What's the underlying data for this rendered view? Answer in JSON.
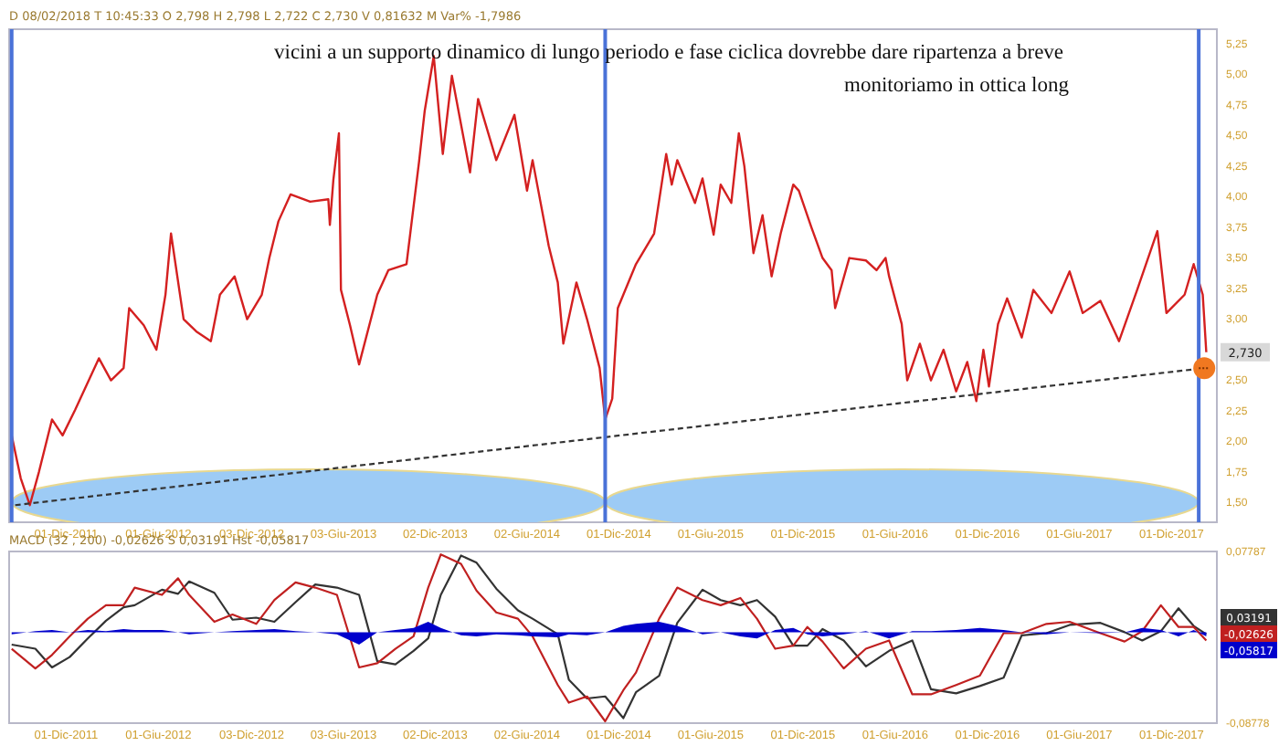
{
  "chart_data": [
    {
      "type": "line",
      "xlim": [
        "2011-08-10",
        "2018-03-01"
      ],
      "ylim": [
        1.34,
        5.37
      ],
      "xticks": [
        {
          "value": "2011-12-01",
          "label": "01-Dic-2011"
        },
        {
          "value": "2012-06-01",
          "label": "01-Giu-2012"
        },
        {
          "value": "2012-12-03",
          "label": "03-Dic-2012"
        },
        {
          "value": "2013-06-03",
          "label": "03-Giu-2013"
        },
        {
          "value": "2013-12-02",
          "label": "02-Dic-2013"
        },
        {
          "value": "2014-06-02",
          "label": "02-Giu-2014"
        },
        {
          "value": "2014-12-01",
          "label": "01-Dic-2014"
        },
        {
          "value": "2015-06-01",
          "label": "01-Giu-2015"
        },
        {
          "value": "2015-12-01",
          "label": "01-Dic-2015"
        },
        {
          "value": "2016-06-01",
          "label": "01-Giu-2016"
        },
        {
          "value": "2016-12-01",
          "label": "01-Dic-2016"
        },
        {
          "value": "2017-06-01",
          "label": "01-Giu-2017"
        },
        {
          "value": "2017-12-01",
          "label": "01-Dic-2017"
        }
      ],
      "yticks": [
        {
          "value": 1.5,
          "label": "1,50"
        },
        {
          "value": 1.75,
          "label": "1,75"
        },
        {
          "value": 2,
          "label": "2,00"
        },
        {
          "value": 2.25,
          "label": "2,25"
        },
        {
          "value": 2.5,
          "label": "2,50"
        },
        {
          "value": 3,
          "label": "3,00"
        },
        {
          "value": 3.25,
          "label": "3,25"
        },
        {
          "value": 3.5,
          "label": "3,50"
        },
        {
          "value": 3.75,
          "label": "3,75"
        },
        {
          "value": 4,
          "label": "4,00"
        },
        {
          "value": 4.25,
          "label": "4,25"
        },
        {
          "value": 4.5,
          "label": "4,50"
        },
        {
          "value": 4.75,
          "label": "4,75"
        },
        {
          "value": 5,
          "label": "5,00"
        },
        {
          "value": 5.25,
          "label": "5,25"
        }
      ],
      "series": [
        {
          "color": "#d42020",
          "line_style": "solid",
          "x": [
            "2011-08-15",
            "2011-09-02",
            "2011-09-20",
            "2011-10-08",
            "2011-11-03",
            "2011-11-24",
            "2011-12-19",
            "2012-02-04",
            "2012-02-28",
            "2012-03-24",
            "2012-04-04",
            "2012-05-03",
            "2012-05-28",
            "2012-06-15",
            "2012-06-26",
            "2012-07-21",
            "2012-08-15",
            "2012-09-13",
            "2012-10-01",
            "2012-10-30",
            "2012-11-24",
            "2012-12-23",
            "2013-01-07",
            "2013-01-25",
            "2013-02-18",
            "2013-03-29",
            "2013-05-04",
            "2013-05-07",
            "2013-05-14",
            "2013-05-25",
            "2013-05-29",
            "2013-06-16",
            "2013-07-04",
            "2013-08-09",
            "2013-08-31",
            "2013-10-06",
            "2013-10-31",
            "2013-11-11",
            "2013-11-29",
            "2013-12-17",
            "2014-01-04",
            "2014-02-09",
            "2014-02-25",
            "2014-04-02",
            "2014-05-08",
            "2014-06-02",
            "2014-06-13",
            "2014-07-15",
            "2014-08-02",
            "2014-08-13",
            "2014-09-08",
            "2014-09-29",
            "2014-10-24",
            "2014-11-04",
            "2014-11-18",
            "2014-11-29",
            "2014-12-10",
            "2015-01-04",
            "2015-02-09",
            "2015-03-05",
            "2015-03-16",
            "2015-03-27",
            "2015-05-01",
            "2015-05-16",
            "2015-06-07",
            "2015-06-21",
            "2015-07-12",
            "2015-07-27",
            "2015-08-07",
            "2015-08-25",
            "2015-09-12",
            "2015-09-30",
            "2015-10-18",
            "2015-11-12",
            "2015-11-23",
            "2015-12-18",
            "2016-01-09",
            "2016-01-27",
            "2016-02-03",
            "2016-03-02",
            "2016-04-04",
            "2016-04-25",
            "2016-05-13",
            "2016-05-20",
            "2016-06-14",
            "2016-06-25",
            "2016-07-20",
            "2016-08-11",
            "2016-09-05",
            "2016-09-30",
            "2016-10-22",
            "2016-11-09",
            "2016-11-23",
            "2016-12-04",
            "2016-12-22",
            "2017-01-09",
            "2017-02-07",
            "2017-03-02",
            "2017-04-07",
            "2017-05-13",
            "2017-06-08",
            "2017-07-13",
            "2017-08-19",
            "2017-09-24",
            "2017-11-03",
            "2017-11-21",
            "2017-12-27",
            "2018-01-14",
            "2018-02-01",
            "2018-02-08"
          ],
          "values": [
            2.05,
            1.7,
            1.48,
            1.75,
            2.18,
            2.05,
            2.26,
            2.68,
            2.5,
            2.6,
            3.09,
            2.95,
            2.75,
            3.2,
            3.7,
            3.0,
            2.9,
            2.82,
            3.2,
            3.35,
            3.0,
            3.2,
            3.5,
            3.8,
            4.02,
            3.96,
            3.98,
            3.77,
            4.14,
            4.52,
            3.24,
            2.95,
            2.63,
            3.2,
            3.4,
            3.45,
            4.29,
            4.7,
            5.15,
            4.35,
            4.99,
            4.2,
            4.8,
            4.3,
            4.67,
            4.05,
            4.3,
            3.6,
            3.3,
            2.8,
            3.3,
            3.0,
            2.6,
            2.18,
            2.35,
            3.09,
            3.2,
            3.45,
            3.7,
            4.35,
            4.1,
            4.3,
            3.95,
            4.15,
            3.69,
            4.1,
            3.95,
            4.52,
            4.25,
            3.54,
            3.85,
            3.35,
            3.7,
            4.1,
            4.05,
            3.75,
            3.5,
            3.4,
            3.09,
            3.5,
            3.48,
            3.4,
            3.5,
            3.35,
            2.96,
            2.5,
            2.8,
            2.5,
            2.75,
            2.41,
            2.65,
            2.33,
            2.75,
            2.45,
            2.96,
            3.17,
            2.85,
            3.24,
            3.05,
            3.39,
            3.05,
            3.15,
            2.82,
            3.24,
            3.72,
            3.05,
            3.2,
            3.45,
            3.2,
            2.73
          ]
        },
        {
          "color": "#333333",
          "line_style": "dashed",
          "x": [
            "2011-08-22",
            "2018-02-04"
          ],
          "values": [
            1.48,
            2.6
          ]
        }
      ],
      "ref_lines": [
        {
          "axis": "x",
          "value": "2011-08-15",
          "color": "#4a72d8"
        },
        {
          "axis": "x",
          "value": "2014-11-04",
          "color": "#4a72d8"
        },
        {
          "axis": "x",
          "value": "2018-01-24",
          "color": "#4a72d8"
        }
      ],
      "annotations": [
        "D 08/02/2018  T 10:45:33  O 2,798  H 2,798  L 2,722  C 2,730  V 0,81632 M  Var% -1,7986",
        "vicini a un supporto dinamico di lungo periodo e fase ciclica dovrebbe dare ripartenza a breve",
        "monitoriamo in ottica long",
        {
          "text": "2,730",
          "y": 2.73
        }
      ],
      "grid": false
    },
    {
      "type": "line",
      "xlim": [
        "2011-08-10",
        "2018-03-01"
      ],
      "ylim": [
        -0.08778,
        0.07787
      ],
      "xticks": [
        {
          "value": "2011-12-01",
          "label": "01-Dic-2011"
        },
        {
          "value": "2012-06-01",
          "label": "01-Giu-2012"
        },
        {
          "value": "2012-12-03",
          "label": "03-Dic-2012"
        },
        {
          "value": "2013-06-03",
          "label": "03-Giu-2013"
        },
        {
          "value": "2013-12-02",
          "label": "02-Dic-2013"
        },
        {
          "value": "2014-06-02",
          "label": "02-Giu-2014"
        },
        {
          "value": "2014-12-01",
          "label": "01-Dic-2014"
        },
        {
          "value": "2015-06-01",
          "label": "01-Giu-2015"
        },
        {
          "value": "2015-12-01",
          "label": "01-Dic-2015"
        },
        {
          "value": "2016-06-01",
          "label": "01-Giu-2016"
        },
        {
          "value": "2016-12-01",
          "label": "01-Dic-2016"
        },
        {
          "value": "2017-06-01",
          "label": "01-Giu-2017"
        },
        {
          "value": "2017-12-01",
          "label": "01-Dic-2017"
        }
      ],
      "yticks": [
        {
          "value": -0.08778,
          "label": "-0,08778"
        },
        {
          "value": 0.07787,
          "label": "0,07787"
        }
      ],
      "x": [
        "2011-08-15",
        "2011-10-01",
        "2011-11-03",
        "2011-12-08",
        "2012-01-13",
        "2012-02-18",
        "2012-03-24",
        "2012-04-15",
        "2012-06-08",
        "2012-07-10",
        "2012-08-01",
        "2012-09-20",
        "2012-10-26",
        "2012-12-12",
        "2013-01-17",
        "2013-02-28",
        "2013-04-08",
        "2013-05-21",
        "2013-07-04",
        "2013-08-09",
        "2013-09-14",
        "2013-10-20",
        "2013-11-18",
        "2013-12-13",
        "2014-01-22",
        "2014-02-22",
        "2014-04-02",
        "2014-05-15",
        "2014-06-13",
        "2014-08-02",
        "2014-08-24",
        "2014-09-29",
        "2014-11-04",
        "2014-12-10",
        "2015-01-04",
        "2015-02-19",
        "2015-03-27",
        "2015-05-16",
        "2015-06-21",
        "2015-07-30",
        "2015-09-01",
        "2015-10-07",
        "2015-11-12",
        "2015-12-10",
        "2016-01-09",
        "2016-02-20",
        "2016-04-04",
        "2016-05-20",
        "2016-07-05",
        "2016-08-11",
        "2016-09-30",
        "2016-11-16",
        "2017-01-02",
        "2017-02-07",
        "2017-03-28",
        "2017-05-13",
        "2017-07-13",
        "2017-08-30",
        "2017-10-04",
        "2017-11-10",
        "2017-12-15",
        "2018-01-14",
        "2018-02-08"
      ],
      "series": [
        {
          "color": "#333333",
          "values": [
            -0.012,
            -0.016,
            -0.034,
            -0.024,
            -0.006,
            0.011,
            0.024,
            0.026,
            0.041,
            0.037,
            0.049,
            0.038,
            0.012,
            0.014,
            0.01,
            0.029,
            0.046,
            0.043,
            0.036,
            -0.028,
            -0.031,
            -0.018,
            -0.006,
            0.036,
            0.074,
            0.067,
            0.042,
            0.021,
            0.013,
            -0.002,
            -0.046,
            -0.064,
            -0.062,
            -0.083,
            -0.058,
            -0.042,
            0.009,
            0.041,
            0.031,
            0.026,
            0.031,
            0.015,
            -0.013,
            -0.013,
            0.003,
            -0.008,
            -0.033,
            -0.018,
            -0.008,
            -0.055,
            -0.059,
            -0.052,
            -0.044,
            -0.003,
            -0.001,
            0.007,
            0.009,
            0.0,
            -0.008,
            0.001,
            0.023,
            0.006,
            -0.002
          ]
        },
        {
          "color": "#c02020",
          "values": [
            -0.016,
            -0.035,
            -0.022,
            -0.004,
            0.013,
            0.026,
            0.026,
            0.043,
            0.036,
            0.052,
            0.036,
            0.01,
            0.017,
            0.008,
            0.031,
            0.048,
            0.043,
            0.036,
            -0.034,
            -0.03,
            -0.016,
            -0.004,
            0.043,
            0.075,
            0.066,
            0.04,
            0.019,
            0.013,
            -0.004,
            -0.051,
            -0.068,
            -0.062,
            -0.086,
            -0.056,
            -0.039,
            0.013,
            0.043,
            0.031,
            0.026,
            0.033,
            0.013,
            -0.016,
            -0.013,
            0.005,
            -0.009,
            -0.035,
            -0.016,
            -0.008,
            -0.06,
            -0.06,
            -0.051,
            -0.042,
            -0.001,
            -0.001,
            0.008,
            0.01,
            -0.001,
            -0.009,
            0.001,
            0.026,
            0.005,
            0.005,
            -0.008
          ]
        },
        {
          "type": "area",
          "color": "#0000cc",
          "values": [
            -0.002,
            0.001,
            0.002,
            0.0,
            0.002,
            0.001,
            0.003,
            0.002,
            0.002,
            0.0,
            -0.002,
            0.0,
            0.001,
            0.002,
            0.003,
            0.001,
            0.0,
            -0.002,
            -0.012,
            0.0,
            0.002,
            0.004,
            0.01,
            0.004,
            -0.003,
            -0.004,
            -0.002,
            -0.003,
            -0.004,
            -0.005,
            -0.002,
            -0.003,
            0.0,
            0.006,
            0.008,
            0.01,
            0.006,
            -0.002,
            0.0,
            -0.004,
            -0.006,
            0.002,
            0.004,
            -0.002,
            -0.004,
            -0.002,
            0.001,
            -0.006,
            0.001,
            0.001,
            0.002,
            0.004,
            0.002,
            0.0,
            -0.002,
            0.0,
            -0.001,
            0.0,
            0.004,
            0.002,
            -0.004,
            0.002,
            -0.004
          ]
        }
      ],
      "annotations": [
        "MACD  (32 , 200)  -0,02626   S  0,03191   Hst  -0,05817",
        "0,03191",
        "-0,02626",
        "-0,05817"
      ],
      "grid": false
    }
  ]
}
